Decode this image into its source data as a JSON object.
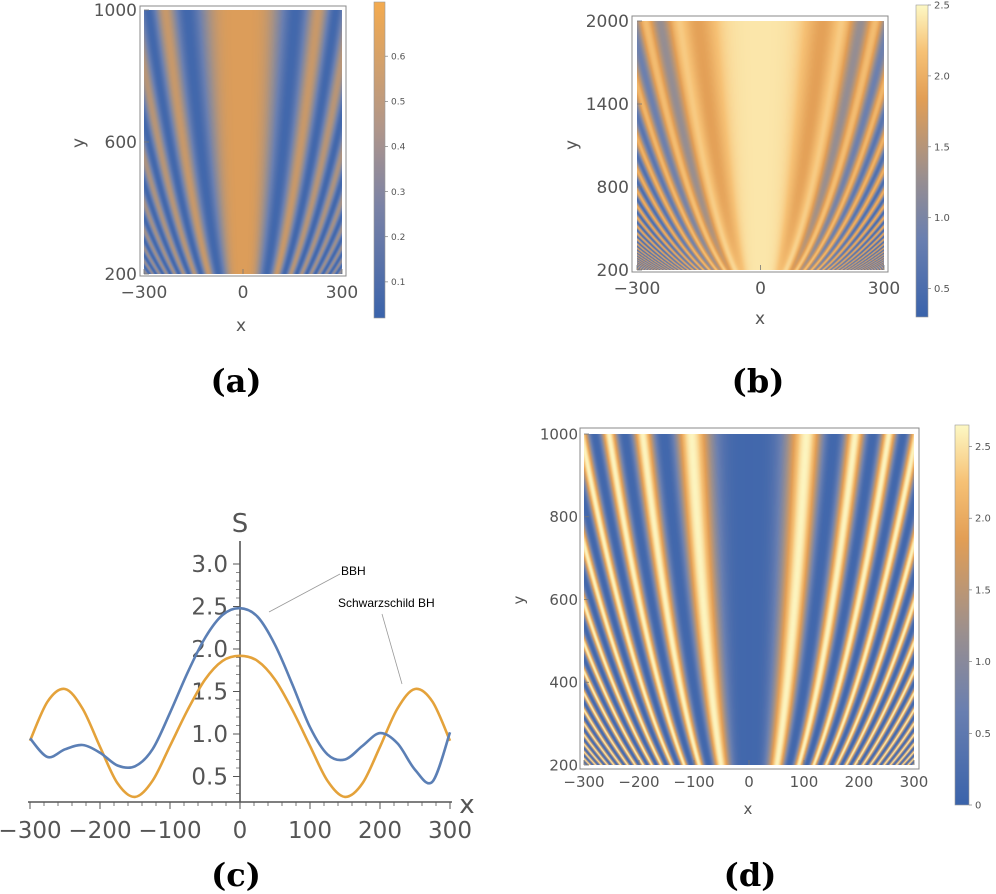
{
  "colors": {
    "blue": "#3f68ad",
    "orange": "#f4ab4f",
    "light": "#fdf8c4",
    "grey": "#8d8f9a",
    "line_blue": "#5b7fb5",
    "line_orange": "#e4a23a"
  },
  "chart_data": [
    {
      "panel": "(a)",
      "type": "heatmap",
      "xlabel": "x",
      "ylabel": "y",
      "xlim": [
        -300,
        300
      ],
      "ylim": [
        200,
        1000
      ],
      "xticks": [
        "−300",
        "0",
        "300"
      ],
      "yticks": [
        "200",
        "600",
        "1000"
      ],
      "colorbar": {
        "range": [
          0.02,
          0.72
        ],
        "ticks": [
          "0.1",
          "0.2",
          "0.3",
          "0.4",
          "0.5",
          "0.6"
        ]
      }
    },
    {
      "panel": "(b)",
      "type": "heatmap",
      "xlabel": "x",
      "ylabel": "y",
      "xlim": [
        -300,
        300
      ],
      "ylim": [
        200,
        2000
      ],
      "xticks": [
        "−300",
        "0",
        "300"
      ],
      "yticks": [
        "200",
        "800",
        "1400",
        "2000"
      ],
      "colorbar": {
        "range": [
          0.3,
          2.5
        ],
        "ticks": [
          "0.5",
          "1.0",
          "1.5",
          "2.0",
          "2.5"
        ]
      }
    },
    {
      "panel": "(c)",
      "type": "line",
      "xlabel": "x",
      "ylabel": "S",
      "xlim": [
        -300,
        300
      ],
      "ylim": [
        0.2,
        3.0
      ],
      "xticks": [
        "−300",
        "−200",
        "−100",
        "0",
        "100",
        "200",
        "300"
      ],
      "yticks": [
        "0.5",
        "1.0",
        "1.5",
        "2.0",
        "2.5",
        "3.0"
      ],
      "x": [
        -300,
        -275,
        -250,
        -225,
        -200,
        -175,
        -150,
        -125,
        -100,
        -75,
        -50,
        -25,
        0,
        25,
        50,
        75,
        100,
        125,
        150,
        175,
        200,
        225,
        250,
        275,
        300
      ],
      "series": [
        {
          "name": "BBH",
          "values": [
            0.95,
            0.73,
            0.82,
            0.87,
            0.78,
            0.63,
            0.62,
            0.82,
            1.25,
            1.72,
            2.13,
            2.4,
            2.48,
            2.38,
            2.05,
            1.58,
            1.08,
            0.76,
            0.7,
            0.86,
            1.01,
            0.89,
            0.58,
            0.44,
            1.02
          ]
        },
        {
          "name": "Schwarzschild BH",
          "values": [
            0.92,
            1.38,
            1.53,
            1.3,
            0.85,
            0.42,
            0.26,
            0.45,
            0.86,
            1.28,
            1.64,
            1.86,
            1.92,
            1.86,
            1.64,
            1.28,
            0.86,
            0.45,
            0.26,
            0.42,
            0.85,
            1.3,
            1.53,
            1.38,
            0.92
          ]
        }
      ],
      "annotations": [
        "BBH",
        "Schwarzschild BH"
      ]
    },
    {
      "panel": "(d)",
      "type": "heatmap",
      "xlabel": "x",
      "ylabel": "y",
      "xlim": [
        -300,
        300
      ],
      "ylim": [
        200,
        1000
      ],
      "xticks": [
        "−300",
        "−200",
        "−100",
        "0",
        "100",
        "200",
        "300"
      ],
      "yticks": [
        "200",
        "400",
        "600",
        "800",
        "1000"
      ],
      "colorbar": {
        "range": [
          0,
          2.65
        ],
        "ticks": [
          "0",
          "0.5",
          "1.0",
          "1.5",
          "2.0",
          "2.5"
        ]
      }
    }
  ]
}
